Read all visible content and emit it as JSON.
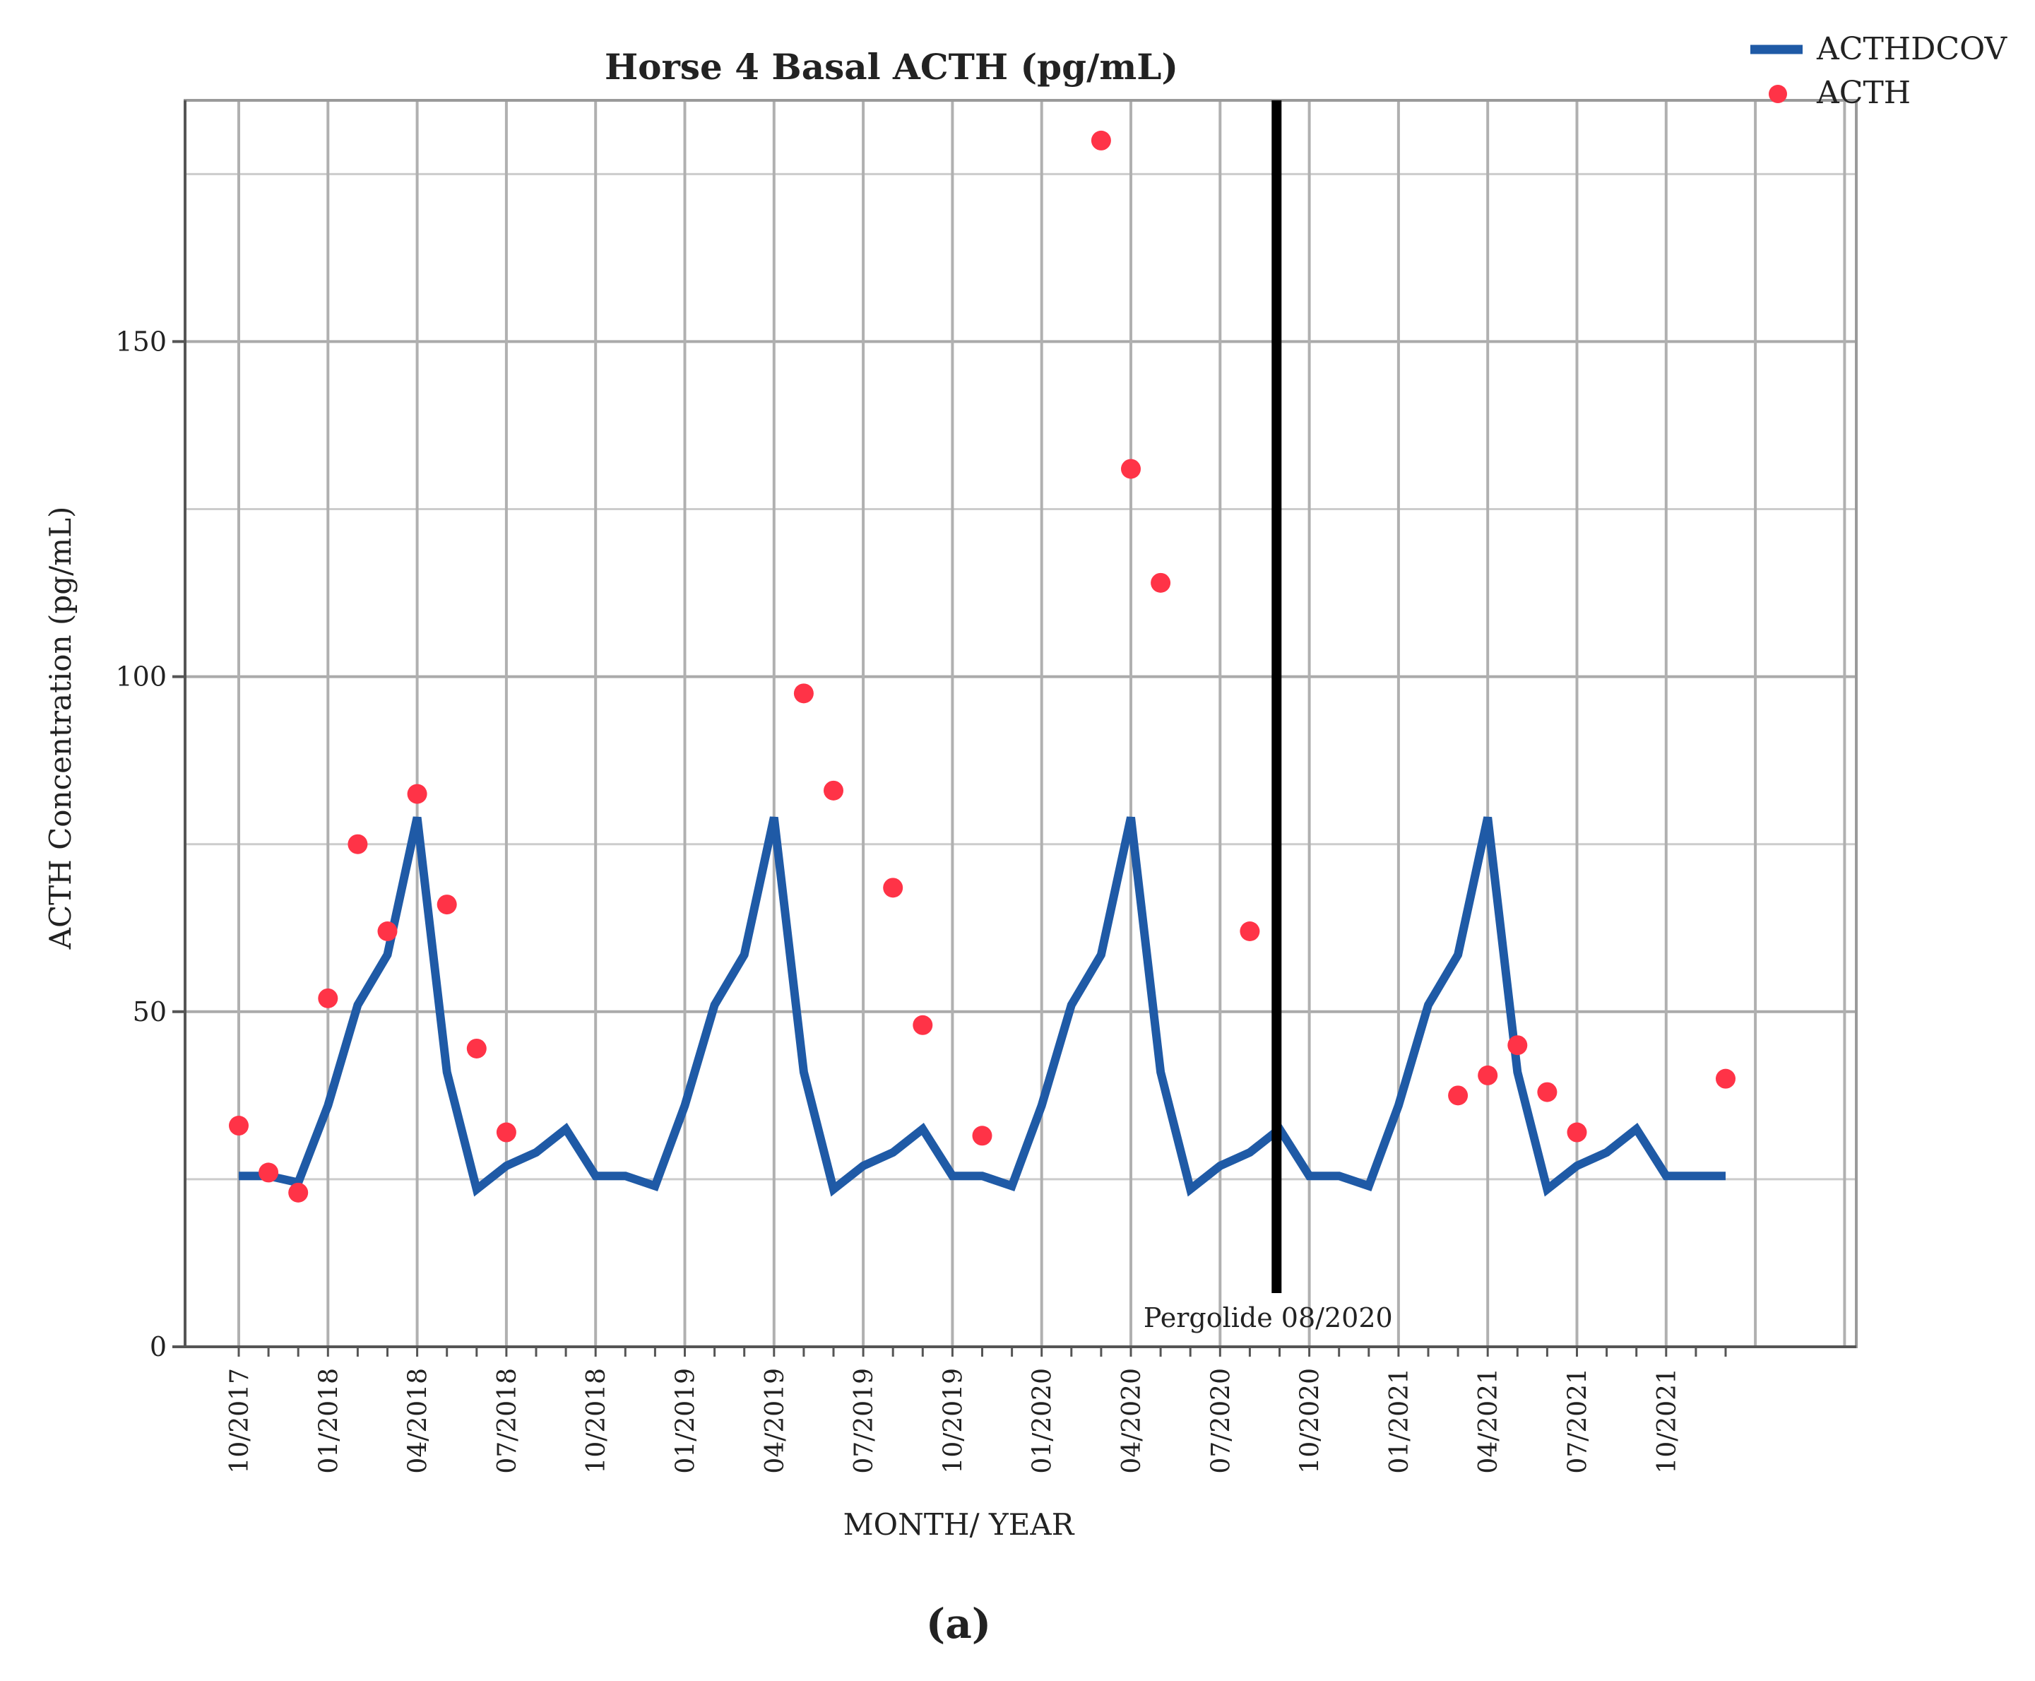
{
  "chart_data": {
    "type": "line",
    "title": "Horse 4 Basal ACTH (pg/mL)",
    "xlabel": "MONTH/ YEAR",
    "ylabel": "ACTH Concentration (pg/mL)",
    "ylim": [
      0,
      186
    ],
    "yticks": [
      0,
      50,
      100,
      150
    ],
    "grid": true,
    "legend_position": "top-right",
    "x_months_start": "10/2017",
    "x_month_count": 51,
    "xtick_labels": [
      "10/2017",
      "01/2018",
      "04/2018",
      "07/2018",
      "10/2018",
      "01/2019",
      "04/2019",
      "07/2019",
      "10/2019",
      "01/2020",
      "04/2020",
      "07/2020",
      "10/2020",
      "01/2021",
      "04/2021",
      "07/2021",
      "10/2021"
    ],
    "series": [
      {
        "name": "ACTHDCOV",
        "style": "line",
        "color": "#1f5aa6",
        "x": [
          0,
          1,
          2,
          3,
          4,
          5,
          6,
          7,
          8,
          9,
          10,
          11,
          12,
          13,
          14,
          15,
          16,
          17,
          18,
          19,
          20,
          21,
          22,
          23,
          24,
          25,
          26,
          27,
          28,
          29,
          30,
          31,
          32,
          33,
          34,
          35,
          36,
          37,
          38,
          39,
          40,
          41,
          42,
          43,
          44,
          45,
          46,
          47,
          48,
          49,
          50
        ],
        "values": [
          25.5,
          25.5,
          24.5,
          36,
          51,
          58.5,
          79,
          41,
          23.5,
          27,
          29,
          32.5,
          25.5,
          25.5,
          24,
          36,
          51,
          58.5,
          79,
          41,
          23.5,
          27,
          29,
          32.5,
          25.5,
          25.5,
          24,
          36,
          51,
          58.5,
          79,
          41,
          23.5,
          27,
          29,
          32.5,
          25.5,
          25.5,
          24,
          36,
          51,
          58.5,
          79,
          41,
          23.5,
          27,
          29,
          32.5,
          25.5,
          25.5,
          25.5
        ]
      },
      {
        "name": "ACTH",
        "style": "scatter",
        "color": "#ff3347",
        "x": [
          0,
          1,
          2,
          3,
          4,
          5,
          6,
          7,
          8,
          9,
          19,
          20,
          22,
          23,
          25,
          29,
          30,
          31,
          34,
          41,
          42,
          43,
          44,
          45,
          50
        ],
        "values": [
          33,
          26,
          23,
          52,
          75,
          62,
          82.5,
          66,
          44.5,
          32,
          97.5,
          83,
          68.5,
          48,
          31.5,
          180,
          131,
          114,
          62,
          37.5,
          40.5,
          45,
          38,
          32,
          40
        ]
      }
    ],
    "annotations": [
      {
        "type": "vline",
        "x": 34.9,
        "label": "Pergolide 08/2020",
        "color": "#000000"
      }
    ]
  },
  "caption": "(a)"
}
